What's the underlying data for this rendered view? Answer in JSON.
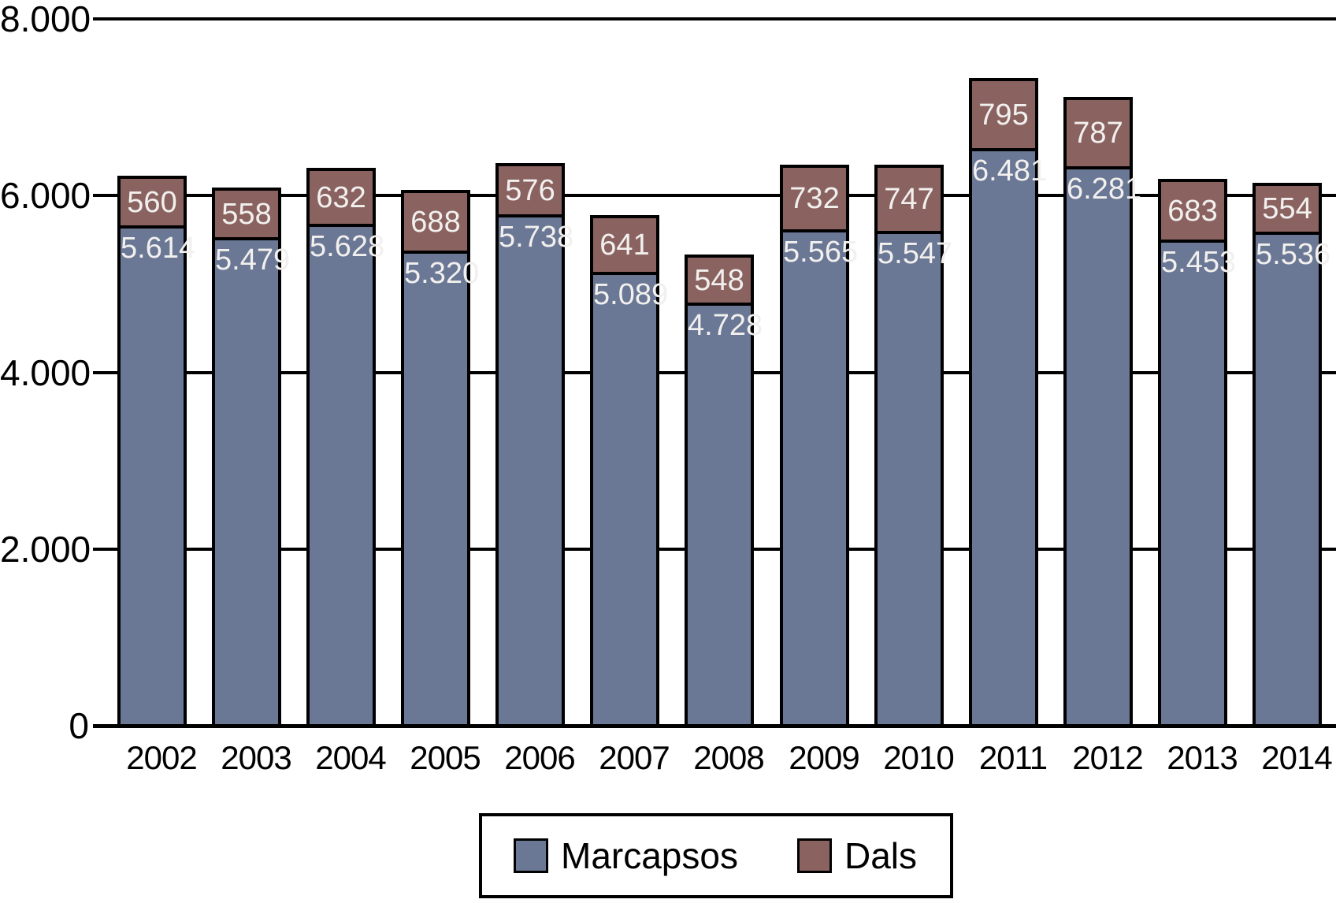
{
  "chart_data": {
    "type": "bar",
    "stacked": true,
    "title": "",
    "categories": [
      "2002",
      "2003",
      "2004",
      "2005",
      "2006",
      "2007",
      "2008",
      "2009",
      "2010",
      "2011",
      "2012",
      "2013",
      "2014"
    ],
    "series": [
      {
        "name": "Marcapsos",
        "color": "#6A7795",
        "values": [
          5614,
          5479,
          5628,
          5320,
          5738,
          5089,
          4728,
          5565,
          5547,
          6481,
          6281,
          5453,
          5536
        ],
        "labels": [
          "5.614",
          "5.479",
          "5.628",
          "5.320",
          "5.738",
          "5.089",
          "4.728",
          "5.565",
          "5.547",
          "6.481",
          "6.281",
          "5.453",
          "5.536"
        ]
      },
      {
        "name": "Dals",
        "color": "#8A6361",
        "values": [
          560,
          558,
          632,
          688,
          576,
          641,
          548,
          732,
          747,
          795,
          787,
          683,
          554
        ],
        "labels": [
          "560",
          "558",
          "632",
          "688",
          "576",
          "641",
          "548",
          "732",
          "747",
          "795",
          "787",
          "683",
          "554"
        ]
      }
    ],
    "xlabel": "",
    "ylabel": "",
    "ylim": [
      0,
      8000
    ],
    "yticks": [
      {
        "value": 0,
        "label": "0"
      },
      {
        "value": 2000,
        "label": "2.000"
      },
      {
        "value": 4000,
        "label": "4.000"
      },
      {
        "value": 6000,
        "label": "6.000"
      },
      {
        "value": 8000,
        "label": "8.000"
      }
    ],
    "grid": true,
    "legend_position": "bottom-center",
    "bar_outline_color": "#000000",
    "bar_label_color": "#F2F0EE",
    "axis_color": "#000000",
    "background_color": "#FFFFFF"
  }
}
